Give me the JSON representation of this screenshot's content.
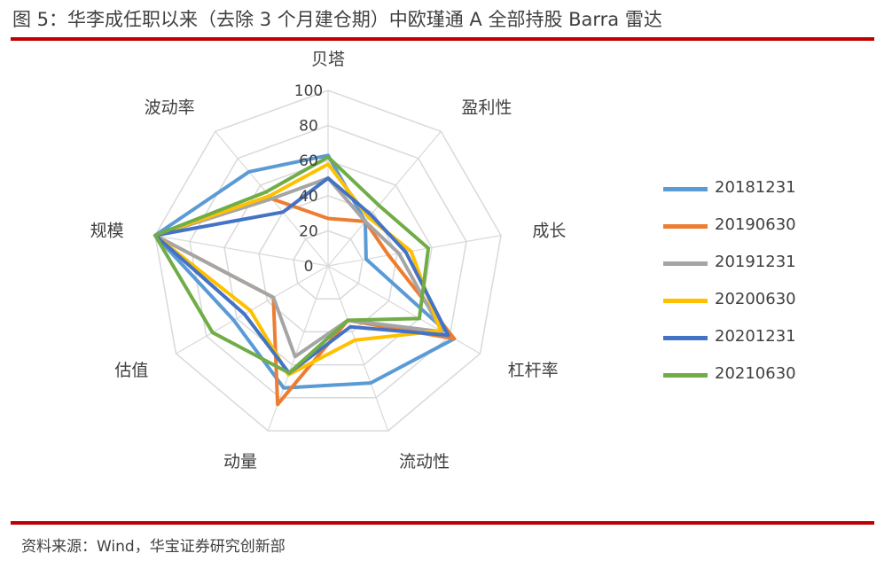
{
  "title": "图 5：华李成任职以来（去除 3 个月建仓期）中欧瑾通 A 全部持股 Barra 雷达",
  "source": "资料来源：Wind，华宝证券研究创新部",
  "colors": {
    "rule": "#c00000",
    "grid": "#d9d9d9",
    "text": "#404040"
  },
  "chart_data": {
    "type": "radar",
    "title": "",
    "axes": [
      "贝塔",
      "盈利性",
      "成长",
      "杠杆率",
      "流动性",
      "动量",
      "估值",
      "规模",
      "波动率"
    ],
    "ticks": [
      0,
      20,
      40,
      60,
      80,
      100
    ],
    "rlim": [
      0,
      100
    ],
    "grid": true,
    "legend_position": "right",
    "series": [
      {
        "name": "20181231",
        "color": "#5b9bd5",
        "values": [
          63,
          33,
          22,
          83,
          71,
          74,
          62,
          100,
          70
        ]
      },
      {
        "name": "20190630",
        "color": "#ed7d31",
        "values": [
          27,
          33,
          35,
          83,
          33,
          84,
          36,
          100,
          50
        ]
      },
      {
        "name": "20191231",
        "color": "#a5a5a5",
        "values": [
          50,
          33,
          41,
          75,
          33,
          55,
          36,
          100,
          50
        ]
      },
      {
        "name": "20200630",
        "color": "#ffc000",
        "values": [
          58,
          36,
          48,
          74,
          45,
          66,
          51,
          100,
          52
        ]
      },
      {
        "name": "20201231",
        "color": "#4472c4",
        "values": [
          50,
          38,
          45,
          79,
          37,
          65,
          55,
          100,
          40
        ]
      },
      {
        "name": "20210630",
        "color": "#70ad47",
        "values": [
          62,
          45,
          58,
          60,
          33,
          65,
          76,
          100,
          55
        ]
      }
    ]
  }
}
